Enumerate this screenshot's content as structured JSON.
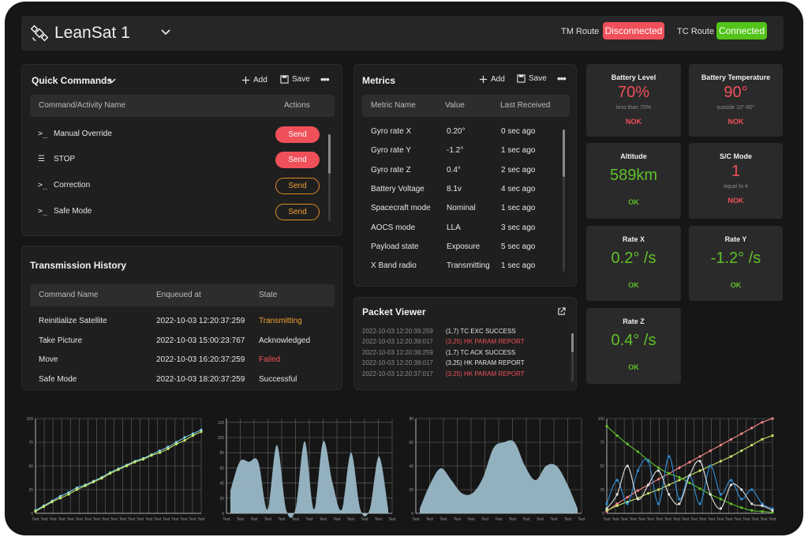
{
  "header": {
    "app_title": "LeanSat 1",
    "tm_route_label": "TM Route",
    "tm_route_status": "Disconnected",
    "tc_route_label": "TC Route",
    "tc_route_status": "Connected"
  },
  "quick_commands": {
    "title": "Quick Commands",
    "add_label": "Add",
    "save_label": "Save",
    "columns": [
      "Command/Activity Name",
      "Actions"
    ],
    "rows": [
      {
        "name": "Manual Override",
        "icon": "terminal-icon",
        "action": "Send",
        "style": "filled"
      },
      {
        "name": "STOP",
        "icon": "list-icon",
        "action": "Send",
        "style": "filled"
      },
      {
        "name": "Correction",
        "icon": "terminal-icon",
        "action": "Send",
        "style": "outline"
      },
      {
        "name": "Safe Mode",
        "icon": "terminal-icon",
        "action": "Send",
        "style": "outline"
      }
    ]
  },
  "transmission_history": {
    "title": "Transmission History",
    "columns": [
      "Command Name",
      "Enqueued at",
      "State"
    ],
    "rows": [
      {
        "name": "Reinitialize Satellite",
        "enqueued": "2022-10-03 12:20:37:259",
        "state": "Transmitting",
        "state_color": "#f0a030"
      },
      {
        "name": "Take Picture",
        "enqueued": "2022-10-03 15:00:23:767",
        "state": "Acknowledged",
        "state_color": "#e6e6e6"
      },
      {
        "name": "Move",
        "enqueued": "2022-10-03 16:20:37:259",
        "state": "Failed",
        "state_color": "#f0505a"
      },
      {
        "name": "Safe Mode",
        "enqueued": "2022-10-03 18:20:37:259",
        "state": "Successful",
        "state_color": "#e6e6e6"
      }
    ]
  },
  "metrics": {
    "title": "Metrics",
    "add_label": "Add",
    "save_label": "Save",
    "columns": [
      "Metric Name",
      "Value",
      "Last Received"
    ],
    "rows": [
      {
        "name": "Gyro rate X",
        "value": "0.20°",
        "last": "0 sec ago"
      },
      {
        "name": "Gyro rate Y",
        "value": "-1.2°",
        "last": "1 sec ago"
      },
      {
        "name": "Gyro rate Z",
        "value": "0.4°",
        "last": "2 sec ago"
      },
      {
        "name": "Battery Voltage",
        "value": "8.1v",
        "last": "4 sec ago"
      },
      {
        "name": "Spacecraft mode",
        "value": "Nominal",
        "last": "1 sec ago"
      },
      {
        "name": "AOCS mode",
        "value": "LLA",
        "last": "3 sec ago"
      },
      {
        "name": "Payload state",
        "value": "Exposure",
        "last": "5 sec ago"
      },
      {
        "name": "X Band radio",
        "value": "Transmitting",
        "last": "1 sec ago"
      }
    ]
  },
  "packet_viewer": {
    "title": "Packet Viewer",
    "rows": [
      {
        "ts": "2022-10-03 12:20:39:259",
        "msg": "(1,7) TC EXC SUCCESS",
        "color": "#e6e6e6"
      },
      {
        "ts": "2022-10-03 12:20:39:017",
        "msg": "(3,25) HK PARAM REPORT",
        "color": "#f0505a"
      },
      {
        "ts": "2022-10-03 12:20:38:259",
        "msg": "(1,7) TC ACK SUCCESS",
        "color": "#e6e6e6"
      },
      {
        "ts": "2022-10-03 12:20:38:017",
        "msg": "(3,25) HK PARAM REPORT",
        "color": "#e6e6e6"
      },
      {
        "ts": "2022-10-03 12:20:37:017",
        "msg": "(3,25) HK PARAM REPORT",
        "color": "#f0505a"
      }
    ]
  },
  "tiles": [
    {
      "label": "Battery Level",
      "value": "70%",
      "sub": "less than 75%",
      "status": "NOK",
      "color": "#f0505a"
    },
    {
      "label": "Battery Temperature",
      "value": "90°",
      "sub": "outside 10°-80°",
      "status": "NOK",
      "color": "#f0505a"
    },
    {
      "label": "Altitude",
      "value": "589km",
      "sub": "",
      "status": "OK",
      "color": "#5fc12a"
    },
    {
      "label": "S/C Mode",
      "value": "1",
      "sub": "equal to 4",
      "status": "NOK",
      "color": "#f0505a"
    },
    {
      "label": "Rate X",
      "value": "0.2° /s",
      "sub": "",
      "status": "OK",
      "color": "#5fc12a"
    },
    {
      "label": "Rate Y",
      "value": "-1.2° /s",
      "sub": "",
      "status": "OK",
      "color": "#5fc12a"
    },
    {
      "label": "Rate Z",
      "value": "0.4° /s",
      "sub": "",
      "status": "OK",
      "color": "#5fc12a"
    }
  ],
  "colors": {
    "disconnected": "#f0505a",
    "connected": "#52c41a",
    "area_fill": "#9ab8c8"
  },
  "chart_data": [
    {
      "type": "line",
      "x_tick_labels": [
        "Text",
        "Text",
        "Text",
        "Text",
        "Text",
        "Text",
        "Text",
        "Text",
        "Text",
        "Text",
        "Text",
        "Text",
        "Text",
        "Text",
        "Text",
        "Text",
        "Text",
        "Text",
        "Text",
        "Text"
      ],
      "y_tick_labels": [
        "0",
        "25",
        "50",
        "75",
        "100"
      ],
      "ylim": [
        0,
        100
      ],
      "grid": true,
      "series": [
        {
          "values": [
            3,
            8,
            13,
            18,
            22,
            27,
            30,
            34,
            38,
            43,
            47,
            51,
            55,
            58,
            62,
            66,
            70,
            75,
            80,
            84,
            88
          ],
          "color": "#7fd1e8"
        },
        {
          "values": [
            2,
            7,
            12,
            16,
            20,
            25,
            29,
            33,
            37,
            42,
            46,
            50,
            54,
            57,
            61,
            64,
            68,
            73,
            77,
            82,
            86
          ],
          "color": "#c8e86a"
        }
      ]
    },
    {
      "type": "area",
      "x_tick_labels": [
        "Text",
        "Text",
        "Text",
        "Text",
        "Text",
        "Text",
        "Text",
        "Text",
        "Text",
        "Text",
        "Text",
        "Text",
        "Text"
      ],
      "y_tick_labels": [
        "0",
        "20",
        "40",
        "60",
        "80",
        "100",
        "120"
      ],
      "ylim": [
        0,
        125
      ],
      "grid": true,
      "values": [
        30,
        68,
        68,
        68,
        5,
        90,
        5,
        5,
        95,
        5,
        95,
        40,
        5,
        80,
        5,
        5,
        75,
        5
      ]
    },
    {
      "type": "area",
      "x_tick_labels": [
        "Text",
        "Text",
        "Text",
        "Text",
        "Text",
        "Text",
        "Text",
        "Text",
        "Text",
        "Text",
        "Text",
        "Text",
        "Text"
      ],
      "y_tick_labels": [
        "0",
        "20",
        "40",
        "60",
        "80"
      ],
      "ylim": [
        0,
        80
      ],
      "grid": true,
      "values": [
        4,
        25,
        38,
        28,
        17,
        17,
        30,
        55,
        60,
        60,
        40,
        28,
        40,
        40,
        25,
        4
      ]
    },
    {
      "type": "line",
      "x_tick_labels": [
        "Text",
        "Text",
        "Text",
        "Text",
        "Text",
        "Text",
        "Text",
        "Text",
        "Text",
        "Text",
        "Text",
        "Text",
        "Text",
        "Text",
        "Text",
        "Text",
        "Text",
        "Text",
        "Text",
        "Text"
      ],
      "y_tick_labels": [
        "0",
        "25",
        "50",
        "75",
        "100"
      ],
      "ylim": [
        0,
        100
      ],
      "grid": true,
      "series": [
        {
          "values": [
            2,
            10,
            17,
            24,
            30,
            36,
            42,
            48,
            54,
            60,
            66,
            72,
            78,
            84,
            90,
            96,
            100
          ],
          "color": "#ff8a8a"
        },
        {
          "values": [
            3,
            8,
            12,
            16,
            21,
            25,
            30,
            35,
            40,
            45,
            50,
            55,
            60,
            66,
            72,
            78,
            82
          ],
          "color": "#c8e86a"
        },
        {
          "values": [
            92,
            82,
            73,
            65,
            56,
            48,
            42,
            38,
            32,
            26,
            20,
            15,
            10,
            6,
            3,
            2,
            1
          ],
          "color": "#5fc12a"
        },
        {
          "values": [
            10,
            35,
            10,
            45,
            55,
            10,
            60,
            15,
            40,
            10,
            50,
            20,
            35,
            15,
            25,
            10,
            5
          ],
          "color": "#2f8fd8"
        },
        {
          "values": [
            5,
            20,
            50,
            15,
            30,
            45,
            20,
            10,
            40,
            55,
            20,
            5,
            30,
            25,
            10,
            8,
            3
          ],
          "color": "#e0e0e0"
        }
      ]
    }
  ]
}
